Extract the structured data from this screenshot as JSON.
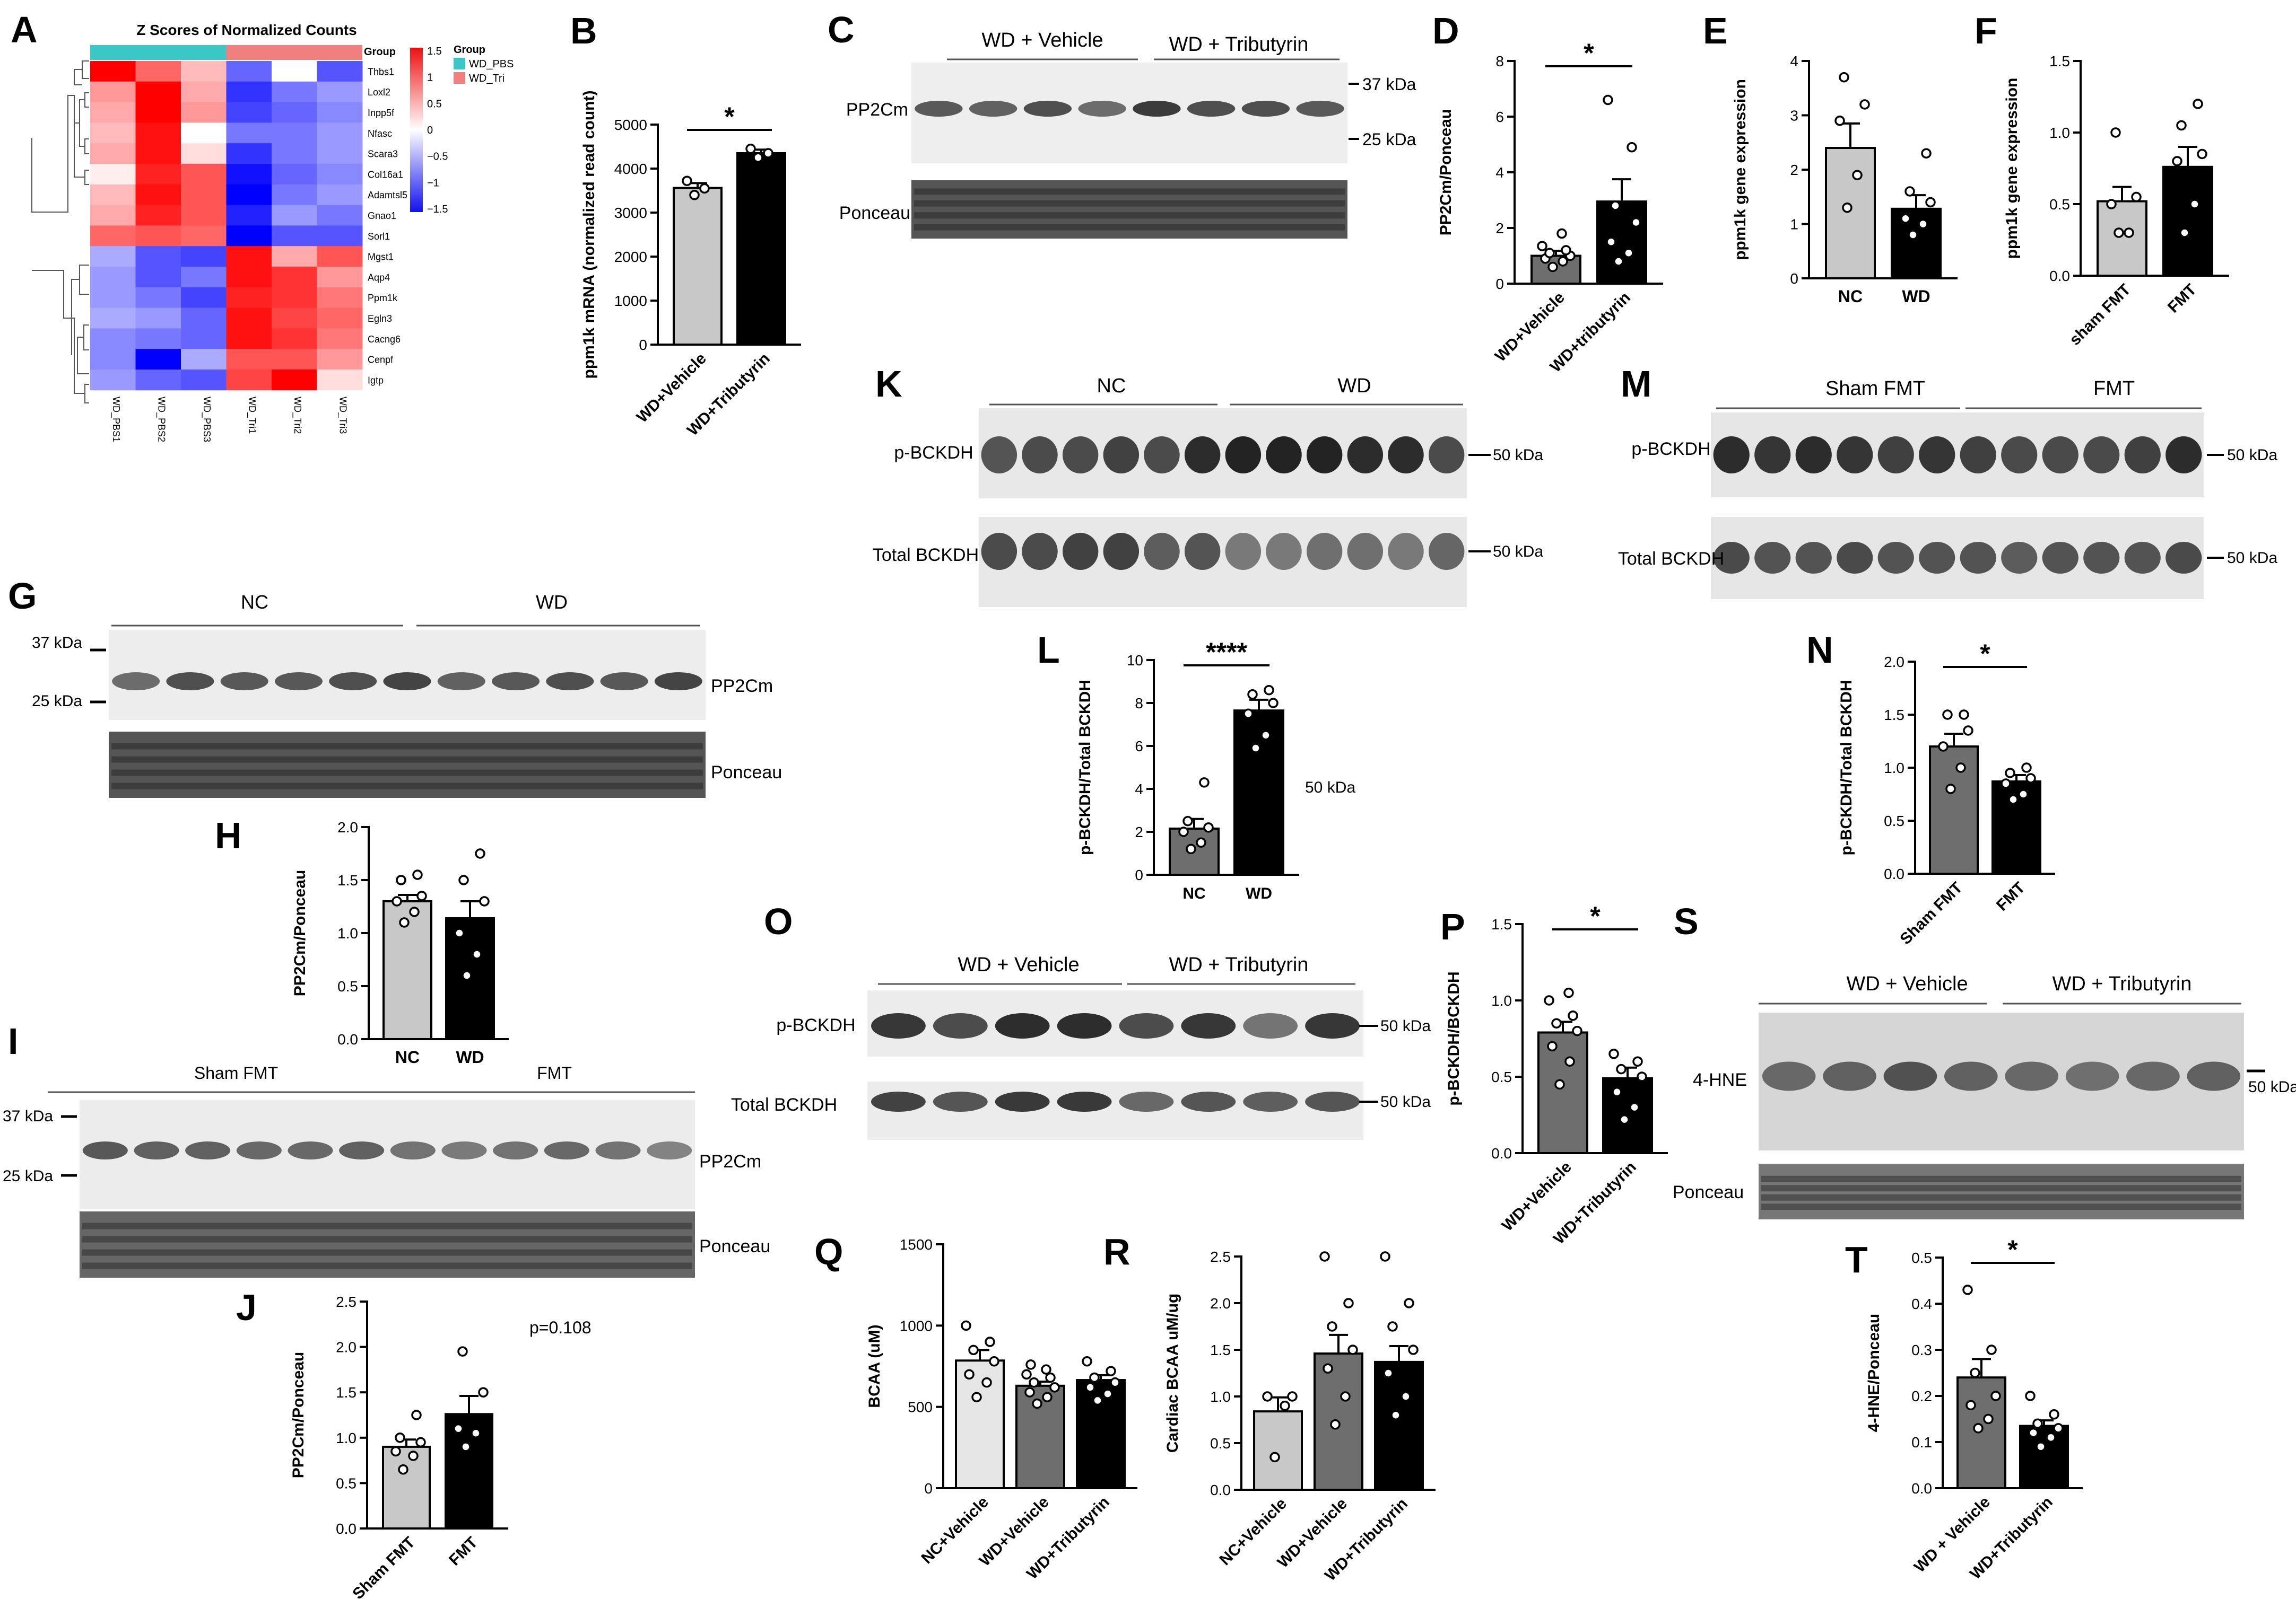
{
  "panels": {
    "A": {
      "letter": "A",
      "title": "Z Scores of Normalized Counts",
      "group_label": "Group",
      "legend_title": "Group",
      "legend_items": [
        {
          "label": "WD_PBS",
          "color": "#3cc7c7"
        },
        {
          "label": "WD_Tri",
          "color": "#f08080"
        }
      ],
      "colorbar_ticks": [
        "1.5",
        "1",
        "0.5",
        "0",
        "−0.5",
        "−1",
        "−1.5"
      ],
      "genes": [
        "Thbs1",
        "Loxl2",
        "Inpp5f",
        "Nfasc",
        "Scara3",
        "Col16a1",
        "Adamtsl5",
        "Gnao1",
        "Sorl1",
        "Mgst1",
        "Aqp4",
        "Ppm1k",
        "Egln3",
        "Cacng6",
        "Cenpf",
        "Igtp"
      ],
      "samples": [
        "WD_PBS1",
        "WD_PBS2",
        "WD_PBS3",
        "WD_Tri1",
        "WD_Tri2",
        "WD_Tri3"
      ],
      "sample_groups": [
        "WD_PBS",
        "WD_PBS",
        "WD_PBS",
        "WD_Tri",
        "WD_Tri",
        "WD_Tri"
      ],
      "z": [
        [
          1.5,
          0.9,
          0.4,
          -0.9,
          0.0,
          -1.0
        ],
        [
          0.6,
          1.5,
          0.5,
          -1.2,
          -0.8,
          -0.6
        ],
        [
          0.5,
          1.5,
          0.6,
          -1.1,
          -0.9,
          -0.7
        ],
        [
          0.4,
          1.4,
          0.0,
          -0.8,
          -0.8,
          -0.6
        ],
        [
          0.5,
          1.4,
          0.2,
          -1.2,
          -0.8,
          -0.6
        ],
        [
          0.1,
          1.3,
          1.0,
          -1.4,
          -0.9,
          -0.7
        ],
        [
          0.4,
          1.4,
          1.0,
          -1.5,
          -0.8,
          -0.6
        ],
        [
          0.5,
          1.3,
          1.0,
          -1.3,
          -0.6,
          -0.8
        ],
        [
          0.9,
          1.0,
          0.9,
          -1.5,
          -1.0,
          -1.0
        ],
        [
          -0.5,
          -1.0,
          -1.1,
          1.4,
          0.5,
          1.0
        ],
        [
          -0.6,
          -1.0,
          -0.8,
          1.4,
          1.2,
          0.6
        ],
        [
          -0.6,
          -0.8,
          -1.1,
          1.3,
          1.2,
          0.8
        ],
        [
          -0.5,
          -0.6,
          -0.9,
          1.4,
          1.1,
          0.9
        ],
        [
          -0.7,
          -0.8,
          -0.9,
          1.4,
          1.2,
          0.8
        ],
        [
          -0.7,
          -1.5,
          -0.5,
          1.0,
          1.0,
          0.6
        ],
        [
          -0.6,
          -0.9,
          -1.0,
          1.1,
          1.5,
          0.2
        ]
      ]
    },
    "B": {
      "letter": "B",
      "chart_data": {
        "type": "bar",
        "categories": [
          "WD+Vehicle",
          "WD+Tributyrin"
        ],
        "values": [
          3560,
          4350
        ],
        "errors": [
          110,
          80
        ],
        "points": [
          [
            3400,
            3550,
            3720
          ],
          [
            4250,
            4350,
            4450
          ]
        ],
        "colors": [
          "#c8c8c8",
          "#000000"
        ],
        "ylabel": "ppm1k mRNA (normalized read count)",
        "ylim": [
          0,
          5000
        ],
        "yticks": [
          "0",
          "1000",
          "2000",
          "3000",
          "4000",
          "5000"
        ],
        "significance": "*"
      }
    },
    "C": {
      "letter": "C",
      "blot_labels": [
        "PP2Cm",
        "Ponceau"
      ],
      "groups": [
        "WD + Vehicle",
        "WD + Tributyrin"
      ],
      "markers": [
        "37 kDa",
        "25 kDa"
      ]
    },
    "D": {
      "letter": "D",
      "chart_data": {
        "type": "bar",
        "categories": [
          "WD+Vehicle",
          "WD+tributyrin"
        ],
        "values": [
          1.0,
          2.95
        ],
        "errors": [
          0.18,
          0.8
        ],
        "points": [
          [
            0.6,
            0.8,
            0.9,
            1.0,
            1.1,
            1.2,
            1.35,
            1.8
          ],
          [
            0.8,
            1.1,
            1.5,
            2.2,
            2.8,
            4.9,
            6.6
          ]
        ],
        "colors": [
          "#6e6e6e",
          "#000000"
        ],
        "ylabel": "PP2Cm/Ponceau",
        "ylim": [
          0,
          8
        ],
        "yticks": [
          "0",
          "2",
          "4",
          "6",
          "8"
        ],
        "significance": "*"
      }
    },
    "E": {
      "letter": "E",
      "chart_data": {
        "type": "bar",
        "categories": [
          "NC",
          "WD"
        ],
        "values": [
          2.4,
          1.28
        ],
        "errors": [
          0.45,
          0.25
        ],
        "points": [
          [
            1.3,
            1.9,
            2.9,
            3.2,
            3.7
          ],
          [
            0.8,
            1.0,
            1.1,
            1.4,
            1.6,
            2.3
          ]
        ],
        "colors": [
          "#c8c8c8",
          "#000000"
        ],
        "ylabel": "ppm1k gene expression",
        "ylim": [
          0,
          4
        ],
        "yticks": [
          "0",
          "1",
          "2",
          "3",
          "4"
        ],
        "significance": ""
      }
    },
    "F": {
      "letter": "F",
      "chart_data": {
        "type": "bar",
        "categories": [
          "sham FMT",
          "FMT"
        ],
        "values": [
          0.52,
          0.76
        ],
        "errors": [
          0.1,
          0.14
        ],
        "points": [
          [
            0.3,
            0.3,
            0.5,
            0.55,
            1.0
          ],
          [
            0.3,
            0.5,
            0.8,
            0.85,
            1.05,
            1.2
          ]
        ],
        "colors": [
          "#c8c8c8",
          "#000000"
        ],
        "ylabel": "ppm1k gene expression",
        "ylim": [
          0,
          1.5
        ],
        "yticks": [
          "0.0",
          "0.5",
          "1.0",
          "1.5"
        ],
        "significance": ""
      }
    },
    "G": {
      "letter": "G",
      "blot_labels": [
        "PP2Cm",
        "Ponceau"
      ],
      "groups": [
        "NC",
        "WD"
      ],
      "markers": [
        "37 kDa",
        "25 kDa"
      ]
    },
    "H": {
      "letter": "H",
      "chart_data": {
        "type": "bar",
        "categories": [
          "NC",
          "WD"
        ],
        "values": [
          1.3,
          1.14
        ],
        "errors": [
          0.06,
          0.16
        ],
        "points": [
          [
            1.1,
            1.2,
            1.3,
            1.35,
            1.5,
            1.55
          ],
          [
            0.6,
            0.8,
            1.0,
            1.3,
            1.5,
            1.75
          ]
        ],
        "colors": [
          "#c8c8c8",
          "#000000"
        ],
        "ylabel": "PP2Cm/Ponceau",
        "ylim": [
          0,
          2.0
        ],
        "yticks": [
          "0.0",
          "0.5",
          "1.0",
          "1.5",
          "2.0"
        ],
        "significance": ""
      }
    },
    "I": {
      "letter": "I",
      "blot_labels": [
        "PP2Cm",
        "Ponceau"
      ],
      "groups": [
        "Sham FMT",
        "FMT"
      ],
      "markers": [
        "37 kDa",
        "25 kDa"
      ]
    },
    "J": {
      "letter": "J",
      "annotation": "p=0.108",
      "chart_data": {
        "type": "bar",
        "categories": [
          "Sham FMT",
          "FMT"
        ],
        "values": [
          0.9,
          1.26
        ],
        "errors": [
          0.08,
          0.2
        ],
        "points": [
          [
            0.65,
            0.8,
            0.85,
            0.95,
            1.0,
            1.25
          ],
          [
            0.9,
            1.05,
            1.1,
            1.5,
            1.95
          ]
        ],
        "colors": [
          "#c8c8c8",
          "#000000"
        ],
        "ylabel": "PP2Cm/Ponceau",
        "ylim": [
          0,
          2.5
        ],
        "yticks": [
          "0.0",
          "0.5",
          "1.0",
          "1.5",
          "2.0",
          "2.5"
        ],
        "significance": ""
      }
    },
    "K": {
      "letter": "K",
      "blot_labels": [
        "p-BCKDH",
        "Total BCKDH"
      ],
      "groups": [
        "NC",
        "WD"
      ],
      "markers": [
        "50 kDa",
        "50 kDa"
      ]
    },
    "L": {
      "letter": "L",
      "side_label": "50 kDa",
      "chart_data": {
        "type": "bar",
        "categories": [
          "NC",
          "WD"
        ],
        "values": [
          2.15,
          7.65
        ],
        "errors": [
          0.45,
          0.5
        ],
        "points": [
          [
            1.2,
            1.5,
            2.0,
            2.2,
            2.5,
            4.3
          ],
          [
            5.9,
            6.5,
            7.5,
            8.0,
            8.4,
            8.6
          ]
        ],
        "colors": [
          "#6e6e6e",
          "#000000"
        ],
        "ylabel": "p-BCKDH/Total BCKDH",
        "ylim": [
          0,
          10
        ],
        "yticks": [
          "0",
          "2",
          "4",
          "6",
          "8",
          "10"
        ],
        "significance": "****"
      }
    },
    "M": {
      "letter": "M",
      "blot_labels": [
        "p-BCKDH",
        "Total BCKDH"
      ],
      "groups": [
        "Sham FMT",
        "FMT"
      ],
      "markers": [
        "50 kDa",
        "50 kDa"
      ]
    },
    "N": {
      "letter": "N",
      "chart_data": {
        "type": "bar",
        "categories": [
          "Sham FMT",
          "FMT"
        ],
        "values": [
          1.2,
          0.87
        ],
        "errors": [
          0.12,
          0.06
        ],
        "points": [
          [
            0.8,
            1.0,
            1.2,
            1.35,
            1.5,
            1.5
          ],
          [
            0.7,
            0.75,
            0.85,
            0.9,
            0.95,
            1.0
          ]
        ],
        "colors": [
          "#6e6e6e",
          "#000000"
        ],
        "ylabel": "p-BCKDH/Total BCKDH",
        "ylim": [
          0,
          2.0
        ],
        "yticks": [
          "0.0",
          "0.5",
          "1.0",
          "1.5",
          "2.0"
        ],
        "significance": "*"
      }
    },
    "O": {
      "letter": "O",
      "blot_labels": [
        "p-BCKDH",
        "Total BCKDH"
      ],
      "groups": [
        "WD + Vehicle",
        "WD + Tributyrin"
      ],
      "markers": [
        "50 kDa",
        "50 kDa"
      ]
    },
    "P": {
      "letter": "P",
      "chart_data": {
        "type": "bar",
        "categories": [
          "WD+Vehicle",
          "WD+Tributyrin"
        ],
        "values": [
          0.79,
          0.49
        ],
        "errors": [
          0.07,
          0.07
        ],
        "points": [
          [
            0.45,
            0.6,
            0.7,
            0.8,
            0.85,
            0.9,
            1.0,
            1.05
          ],
          [
            0.22,
            0.3,
            0.4,
            0.5,
            0.55,
            0.6,
            0.65
          ]
        ],
        "colors": [
          "#6e6e6e",
          "#000000"
        ],
        "ylabel": "p-BCKDH/BCKDH",
        "ylim": [
          0,
          1.5
        ],
        "yticks": [
          "0.0",
          "0.5",
          "1.0",
          "1.5"
        ],
        "significance": "*"
      }
    },
    "Q": {
      "letter": "Q",
      "chart_data": {
        "type": "bar",
        "categories": [
          "NC+Vehicle",
          "WD+Vehicle",
          "WD+Tributyrin"
        ],
        "values": [
          785,
          630,
          665
        ],
        "errors": [
          65,
          25,
          30
        ],
        "points": [
          [
            560,
            650,
            700,
            780,
            850,
            900,
            1000
          ],
          [
            520,
            560,
            590,
            620,
            650,
            680,
            700,
            730,
            760
          ],
          [
            540,
            580,
            620,
            650,
            680,
            720,
            780
          ]
        ],
        "colors": [
          "#e6e6e6",
          "#6e6e6e",
          "#000000"
        ],
        "ylabel": "BCAA (uM)",
        "ylim": [
          0,
          1500
        ],
        "yticks": [
          "0",
          "500",
          "1000",
          "1500"
        ],
        "significance": ""
      }
    },
    "R": {
      "letter": "R",
      "chart_data": {
        "type": "bar",
        "categories": [
          "NC+Vehicle",
          "WD+Vehicle",
          "WD+Tributyrin"
        ],
        "values": [
          0.84,
          1.46,
          1.37
        ],
        "errors": [
          0.15,
          0.2,
          0.17
        ],
        "points": [
          [
            0.35,
            0.9,
            1.0,
            1.0
          ],
          [
            0.7,
            1.0,
            1.3,
            1.5,
            1.75,
            2.0,
            2.5
          ],
          [
            0.8,
            1.0,
            1.25,
            1.5,
            1.75,
            2.0,
            2.5
          ]
        ],
        "colors": [
          "#c8c8c8",
          "#6e6e6e",
          "#000000"
        ],
        "ylabel": "Cardiac BCAA uM/ug",
        "ylim": [
          0,
          2.5
        ],
        "yticks": [
          "0.0",
          "0.5",
          "1.0",
          "1.5",
          "2.0",
          "2.5"
        ],
        "significance": ""
      }
    },
    "S": {
      "letter": "S",
      "blot_labels": [
        "4-HNE",
        "Ponceau"
      ],
      "groups": [
        "WD + Vehicle",
        "WD + Tributyrin"
      ],
      "markers": [
        "50 kDa"
      ]
    },
    "T": {
      "letter": "T",
      "chart_data": {
        "type": "bar",
        "categories": [
          "WD + Vehicle",
          "WD+Tributyrin"
        ],
        "values": [
          0.24,
          0.135
        ],
        "errors": [
          0.04,
          0.012
        ],
        "points": [
          [
            0.13,
            0.15,
            0.18,
            0.2,
            0.25,
            0.3,
            0.43
          ],
          [
            0.09,
            0.11,
            0.12,
            0.13,
            0.14,
            0.16,
            0.2
          ]
        ],
        "colors": [
          "#6e6e6e",
          "#000000"
        ],
        "ylabel": "4-HNE/Ponceau",
        "ylim": [
          0,
          0.5
        ],
        "yticks": [
          "0.0",
          "0.1",
          "0.2",
          "0.3",
          "0.4",
          "0.5"
        ],
        "significance": "*"
      }
    }
  }
}
